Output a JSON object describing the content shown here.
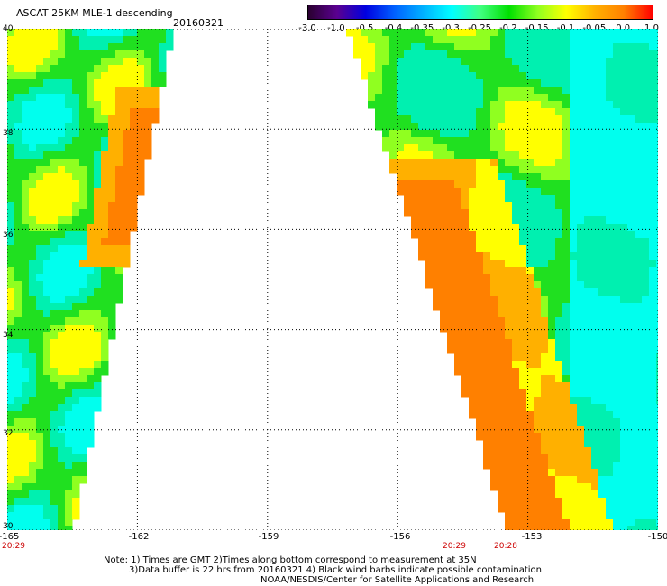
{
  "header": {
    "title": "ASCAT 25KM MLE-1 descending",
    "date": "20160321"
  },
  "colorbar": {
    "tick_labels": [
      "-3.0",
      "-1.0",
      "-0.5",
      "-0.4",
      "-0.35",
      "-0.3",
      "-0.25",
      "-0.2",
      "-0.15",
      "-0.1",
      "-0.05",
      "0.0",
      "1.0"
    ],
    "colors": [
      "#2a0030",
      "#5a0090",
      "#0000e0",
      "#0060ff",
      "#00b0ff",
      "#00ffff",
      "#40ff80",
      "#00e000",
      "#90ff20",
      "#ffff00",
      "#ffb000",
      "#ff8000",
      "#ff0000"
    ]
  },
  "map": {
    "lon_range": [
      -165,
      -150
    ],
    "lat_range": [
      30,
      40
    ],
    "x_tick_labels": [
      "-165",
      "-162",
      "-159",
      "-156",
      "-153",
      "-150"
    ],
    "y_tick_labels": [
      "30",
      "32",
      "34",
      "36",
      "38",
      "40"
    ],
    "time_labels": [
      "20:29",
      "20:29",
      "20:28"
    ],
    "swath_colors": {
      "cyan": "#00ffee",
      "teal": "#00f0b0",
      "green": "#20e020",
      "lime": "#90ff20",
      "yellow": "#ffff00",
      "amber": "#ffb000",
      "orange": "#ff8000"
    }
  },
  "notes": {
    "line1": "Note: 1) Times are GMT 2)Times along bottom correspond to measurement at 35N",
    "line2": "3)Data buffer is 22 hrs from 20160321 4) Black wind barbs indicate possible contamination",
    "line3": "NOAA/NESDIS/Center for Satellite Applications and Research"
  }
}
